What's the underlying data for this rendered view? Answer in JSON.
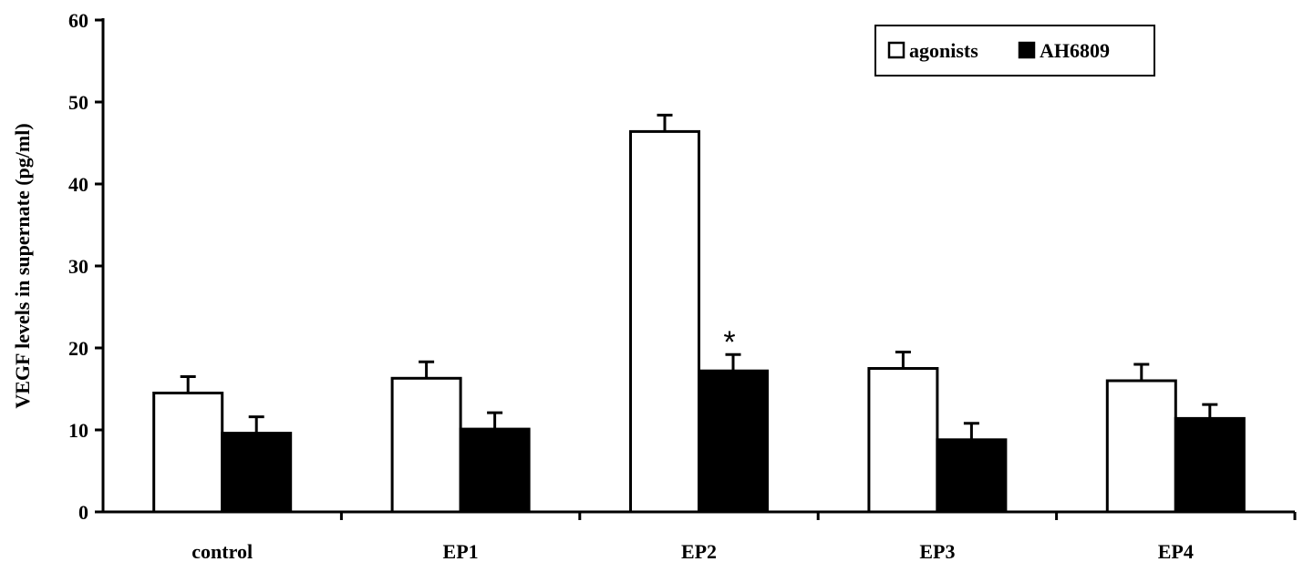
{
  "chart_data": {
    "type": "bar",
    "title": "",
    "xlabel": "",
    "ylabel": "VEGF levels in supernate (pg/ml)",
    "ylim": [
      0,
      60
    ],
    "yticks": [
      0,
      10,
      20,
      30,
      40,
      50,
      60
    ],
    "grid": false,
    "legend_position": "top-right",
    "categories": [
      "control",
      "EP1",
      "EP2",
      "EP3",
      "EP4"
    ],
    "series": [
      {
        "name": "agonists",
        "color": "#ffffff",
        "values": [
          14.5,
          16.3,
          46.4,
          17.5,
          16.0
        ],
        "errors": [
          2.0,
          2.0,
          2.0,
          2.0,
          2.0
        ]
      },
      {
        "name": "AH6809",
        "color": "#000000",
        "values": [
          9.6,
          10.1,
          17.2,
          8.8,
          11.4
        ],
        "errors": [
          2.0,
          2.0,
          2.0,
          2.0,
          1.7
        ]
      }
    ],
    "annotations": [
      {
        "text": "*",
        "category": "EP2",
        "series": "AH6809"
      }
    ]
  }
}
